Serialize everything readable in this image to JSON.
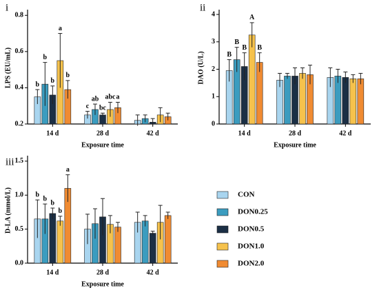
{
  "chart_data": [
    {
      "type": "bar",
      "panel": "i",
      "ylabel": "LPS (EU/mL)",
      "xlabel": "Exposure time",
      "categories": [
        "14 d",
        "28 d",
        "42 d"
      ],
      "ylim": [
        0.2,
        0.82
      ],
      "yticks": [
        0.2,
        0.4,
        0.6,
        0.8
      ],
      "series": [
        {
          "name": "CON",
          "color": "#a9d5ef",
          "values": [
            0.35,
            0.25,
            0.22
          ],
          "errors": [
            0.04,
            0.02,
            0.03
          ],
          "letters": [
            "b",
            "c",
            null
          ]
        },
        {
          "name": "DON0.25",
          "color": "#3b9cbf",
          "values": [
            0.42,
            0.28,
            0.23
          ],
          "errors": [
            0.12,
            0.03,
            0.02
          ],
          "letters": [
            "b",
            "ab",
            null
          ]
        },
        {
          "name": "DON0.5",
          "color": "#1b2f45",
          "values": [
            0.36,
            0.25,
            0.21
          ],
          "errors": [
            0.05,
            0.01,
            0.02
          ],
          "letters": [
            "b",
            "bc",
            null
          ]
        },
        {
          "name": "DON1.0",
          "color": "#f6c24c",
          "values": [
            0.55,
            0.28,
            0.25
          ],
          "errors": [
            0.15,
            0.04,
            0.04
          ],
          "letters": [
            "a",
            "abc",
            null
          ]
        },
        {
          "name": "DON2.0",
          "color": "#f08b32",
          "values": [
            0.39,
            0.29,
            0.24
          ],
          "errors": [
            0.05,
            0.03,
            0.02
          ],
          "letters": [
            "b",
            "a",
            null
          ]
        }
      ]
    },
    {
      "type": "bar",
      "panel": "ii",
      "ylabel": "DAO (U/L)",
      "xlabel": "Exposure time",
      "categories": [
        "14 d",
        "28 d",
        "42 d"
      ],
      "ylim": [
        0,
        4.1
      ],
      "yticks": [
        0,
        1,
        2,
        3,
        4
      ],
      "series": [
        {
          "name": "CON",
          "color": "#a9d5ef",
          "values": [
            1.95,
            1.6,
            1.7
          ],
          "errors": [
            0.4,
            0.25,
            0.35
          ],
          "letters": [
            "B",
            null,
            null
          ]
        },
        {
          "name": "DON0.25",
          "color": "#3b9cbf",
          "values": [
            2.35,
            1.75,
            1.75
          ],
          "errors": [
            0.45,
            0.1,
            0.25
          ],
          "letters": [
            "B",
            null,
            null
          ]
        },
        {
          "name": "DON0.5",
          "color": "#1b2f45",
          "values": [
            2.1,
            1.75,
            1.7
          ],
          "errors": [
            0.5,
            0.3,
            0.2
          ],
          "letters": [
            "B",
            null,
            null
          ]
        },
        {
          "name": "DON1.0",
          "color": "#f6c24c",
          "values": [
            3.25,
            1.85,
            1.65
          ],
          "errors": [
            0.45,
            0.2,
            0.15
          ],
          "letters": [
            "A",
            null,
            null
          ]
        },
        {
          "name": "DON2.0",
          "color": "#f08b32",
          "values": [
            2.25,
            1.8,
            1.65
          ],
          "errors": [
            0.35,
            0.35,
            0.2
          ],
          "letters": [
            "B",
            null,
            null
          ]
        }
      ]
    },
    {
      "type": "bar",
      "panel": "iii",
      "ylabel": "D-LA (mmol/L)",
      "xlabel": "Exposure time",
      "categories": [
        "14 d",
        "28 d",
        "42 d"
      ],
      "ylim": [
        0,
        1.55
      ],
      "yticks": [
        {
          "value": 0,
          "label": "0.0"
        },
        0.5,
        {
          "value": 1,
          "label": "1.0"
        },
        1.5
      ],
      "series": [
        {
          "name": "CON",
          "color": "#a9d5ef",
          "values": [
            0.65,
            0.5,
            0.6
          ],
          "errors": [
            0.28,
            0.22,
            0.15
          ],
          "letters": [
            "b",
            null,
            null
          ]
        },
        {
          "name": "DON0.25",
          "color": "#3b9cbf",
          "values": [
            0.65,
            0.58,
            0.62
          ],
          "errors": [
            0.22,
            0.22,
            0.08
          ],
          "letters": [
            "b",
            null,
            null
          ]
        },
        {
          "name": "DON0.5",
          "color": "#1b2f45",
          "values": [
            0.73,
            0.68,
            0.44
          ],
          "errors": [
            0.08,
            0.27,
            0.03
          ],
          "letters": [
            "b",
            null,
            null
          ]
        },
        {
          "name": "DON1.0",
          "color": "#f6c24c",
          "values": [
            0.62,
            0.57,
            0.6
          ],
          "errors": [
            0.07,
            0.13,
            0.25
          ],
          "letters": [
            "b",
            null,
            null
          ]
        },
        {
          "name": "DON2.0",
          "color": "#f08b32",
          "values": [
            1.1,
            0.53,
            0.7
          ],
          "errors": [
            0.2,
            0.07,
            0.05
          ],
          "letters": [
            "a",
            null,
            null
          ]
        }
      ]
    }
  ]
}
